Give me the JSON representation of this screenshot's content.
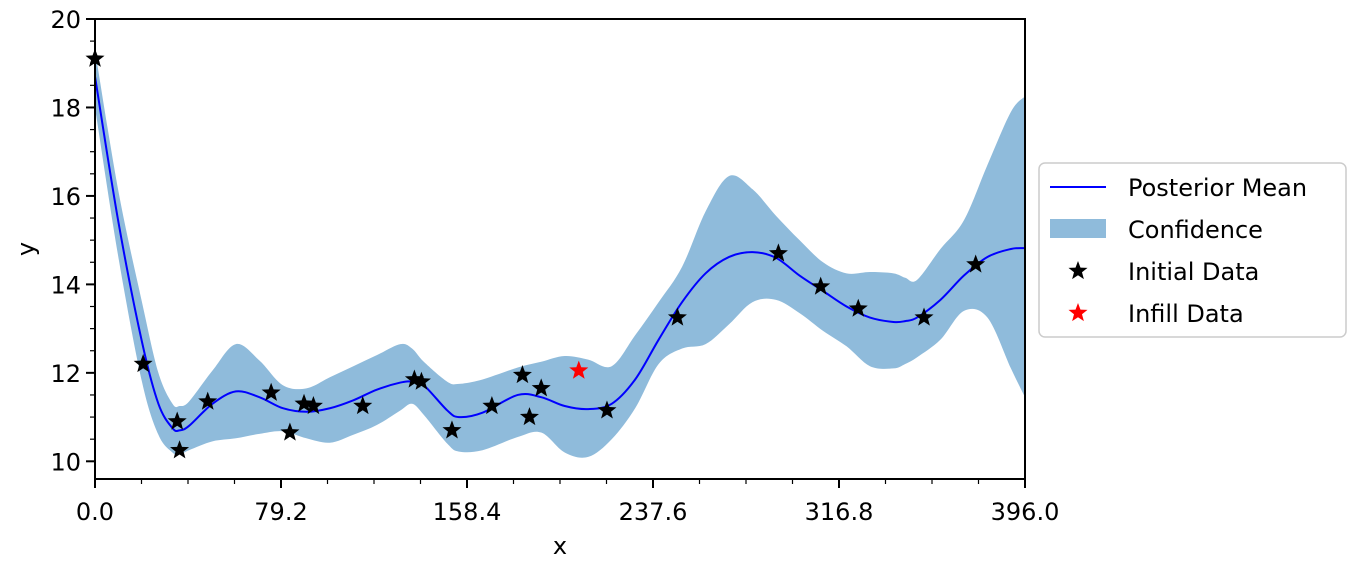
{
  "chart_data": {
    "type": "line",
    "title": "",
    "xlabel": "x",
    "ylabel": "y",
    "xlim": [
      0,
      396
    ],
    "ylim": [
      9.6,
      20
    ],
    "xticks": [
      0,
      79.2,
      158.4,
      237.6,
      316.8,
      396
    ],
    "xtick_labels": [
      "0.0",
      "79.2",
      "158.4",
      "237.6",
      "316.8",
      "396.0"
    ],
    "yticks": [
      10,
      12,
      14,
      16,
      18,
      20
    ],
    "ytick_labels": [
      "10",
      "12",
      "14",
      "16",
      "18",
      "20"
    ],
    "grid": false,
    "legend_position": "right",
    "legend": [
      {
        "label": "Posterior Mean",
        "kind": "line",
        "color": "#0000ff"
      },
      {
        "label": "Confidence",
        "kind": "band",
        "color": "#8fbbdb"
      },
      {
        "label": "Initial Data",
        "kind": "star",
        "color": "#000000"
      },
      {
        "label": "Infill Data",
        "kind": "star",
        "color": "#ff0000"
      }
    ],
    "mean": {
      "name": "Posterior Mean",
      "color": "#0000ff",
      "x": [
        0,
        10,
        20,
        27,
        33,
        36,
        40,
        50,
        60,
        70,
        80,
        90,
        100,
        110,
        120,
        130,
        135,
        140,
        150,
        155,
        165,
        180,
        190,
        200,
        210,
        220,
        230,
        240,
        250,
        260,
        270,
        280,
        290,
        300,
        310,
        320,
        330,
        340,
        345,
        350,
        360,
        370,
        380,
        390,
        396
      ],
      "y": [
        18.7,
        15.4,
        12.7,
        11.3,
        10.75,
        10.7,
        10.8,
        11.3,
        11.58,
        11.45,
        11.2,
        11.12,
        11.2,
        11.38,
        11.62,
        11.78,
        11.8,
        11.72,
        11.15,
        11.0,
        11.1,
        11.5,
        11.45,
        11.25,
        11.18,
        11.3,
        11.85,
        12.75,
        13.6,
        14.25,
        14.62,
        14.73,
        14.6,
        14.2,
        13.85,
        13.5,
        13.25,
        13.15,
        13.17,
        13.25,
        13.65,
        14.2,
        14.62,
        14.8,
        14.82
      ]
    },
    "confidence": {
      "name": "Confidence",
      "color": "#8fbbdb",
      "x": [
        0,
        10,
        20,
        27,
        33,
        36,
        40,
        50,
        60,
        70,
        80,
        90,
        100,
        110,
        120,
        130,
        135,
        140,
        150,
        155,
        165,
        180,
        190,
        200,
        210,
        220,
        230,
        240,
        250,
        260,
        270,
        280,
        290,
        300,
        310,
        320,
        330,
        340,
        345,
        350,
        360,
        370,
        380,
        390,
        396
      ],
      "lower": [
        18.0,
        14.6,
        11.8,
        10.6,
        10.2,
        10.15,
        10.25,
        10.45,
        10.52,
        10.62,
        10.68,
        10.52,
        10.42,
        10.6,
        10.82,
        11.15,
        11.3,
        11.05,
        10.4,
        10.22,
        10.25,
        10.55,
        10.65,
        10.2,
        10.1,
        10.5,
        11.2,
        12.2,
        12.55,
        12.65,
        13.1,
        13.6,
        13.65,
        13.35,
        12.95,
        12.6,
        12.15,
        12.1,
        12.2,
        12.35,
        12.75,
        13.4,
        13.25,
        12.1,
        11.45
      ],
      "upper": [
        19.3,
        16.1,
        13.6,
        12.0,
        11.3,
        11.25,
        11.35,
        12.05,
        12.65,
        12.28,
        11.72,
        11.65,
        11.9,
        12.15,
        12.4,
        12.65,
        12.55,
        12.25,
        11.8,
        11.75,
        11.85,
        12.12,
        12.25,
        12.38,
        12.3,
        12.15,
        12.85,
        13.6,
        14.4,
        15.65,
        16.45,
        16.15,
        15.55,
        15.0,
        14.5,
        14.25,
        14.28,
        14.25,
        14.15,
        14.1,
        14.8,
        15.45,
        16.7,
        17.9,
        18.25
      ]
    },
    "initial_data": {
      "name": "Initial Data",
      "color": "#000000",
      "points": [
        [
          0,
          19.1
        ],
        [
          20.5,
          12.2
        ],
        [
          35,
          10.9
        ],
        [
          36,
          10.25
        ],
        [
          48,
          11.35
        ],
        [
          75,
          11.55
        ],
        [
          83,
          10.65
        ],
        [
          89,
          11.3
        ],
        [
          93,
          11.25
        ],
        [
          114,
          11.25
        ],
        [
          136,
          11.85
        ],
        [
          139,
          11.8
        ],
        [
          152,
          10.7
        ],
        [
          169,
          11.25
        ],
        [
          182,
          11.95
        ],
        [
          185,
          11.0
        ],
        [
          190,
          11.65
        ],
        [
          218,
          11.15
        ],
        [
          248,
          13.25
        ],
        [
          291,
          14.7
        ],
        [
          309,
          13.95
        ],
        [
          325,
          13.45
        ],
        [
          353,
          13.25
        ],
        [
          375,
          14.45
        ]
      ]
    },
    "infill_data": {
      "name": "Infill Data",
      "color": "#ff0000",
      "points": [
        [
          206,
          12.05
        ]
      ]
    }
  }
}
